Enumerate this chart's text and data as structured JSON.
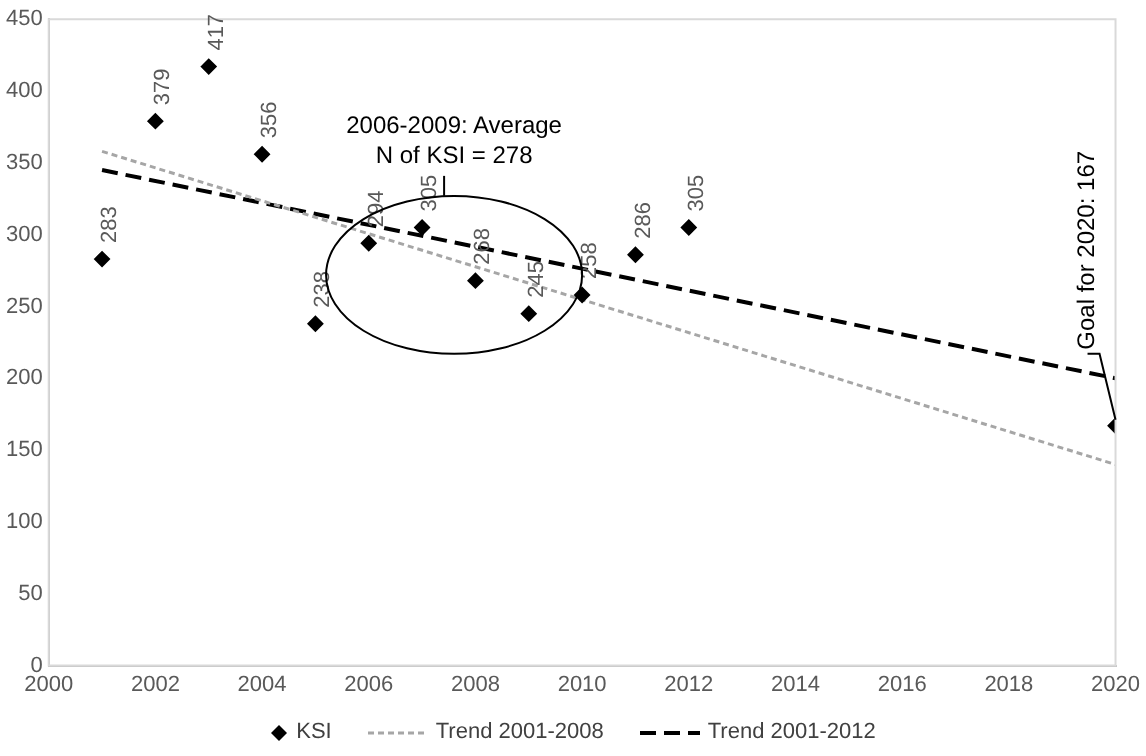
{
  "chart_data": {
    "type": "scatter",
    "marker": "diamond",
    "legend": "bottom",
    "grid": false,
    "xlim": [
      2000,
      2020
    ],
    "xticks": [
      2000,
      2002,
      2004,
      2006,
      2008,
      2010,
      2012,
      2014,
      2016,
      2018,
      2020
    ],
    "ylim": [
      0,
      450
    ],
    "yticks": [
      0,
      50,
      100,
      150,
      200,
      250,
      300,
      350,
      400,
      450
    ],
    "series": [
      {
        "name": "KSI",
        "type": "scatter",
        "color": "#000000",
        "x": [
          2001,
          2002,
          2003,
          2004,
          2005,
          2006,
          2007,
          2008,
          2009,
          2010,
          2011,
          2012,
          2020
        ],
        "values": [
          283,
          379,
          417,
          356,
          238,
          294,
          305,
          268,
          245,
          258,
          286,
          305,
          167
        ],
        "value_labels": [
          "283",
          "379",
          "417",
          "356",
          "238",
          "294",
          "305",
          "268",
          "245",
          "258",
          "286",
          "305",
          null
        ]
      },
      {
        "name": "Trend 2001-2008",
        "type": "line",
        "color": "#a6a6a6",
        "line_style": "dotted",
        "marker": "none",
        "x": [
          2001,
          2020
        ],
        "values": [
          358,
          140
        ]
      },
      {
        "name": "Trend 2001-2012",
        "type": "line",
        "color": "#000000",
        "line_style": "dashed",
        "marker": "none",
        "x": [
          2001,
          2020
        ],
        "values": [
          345,
          200
        ]
      }
    ],
    "annotations": [
      "2006-2009: Average\nN of KSI = 278",
      {
        "text": "Goal for 2020: 167",
        "x": 2020,
        "y": 167
      }
    ]
  }
}
